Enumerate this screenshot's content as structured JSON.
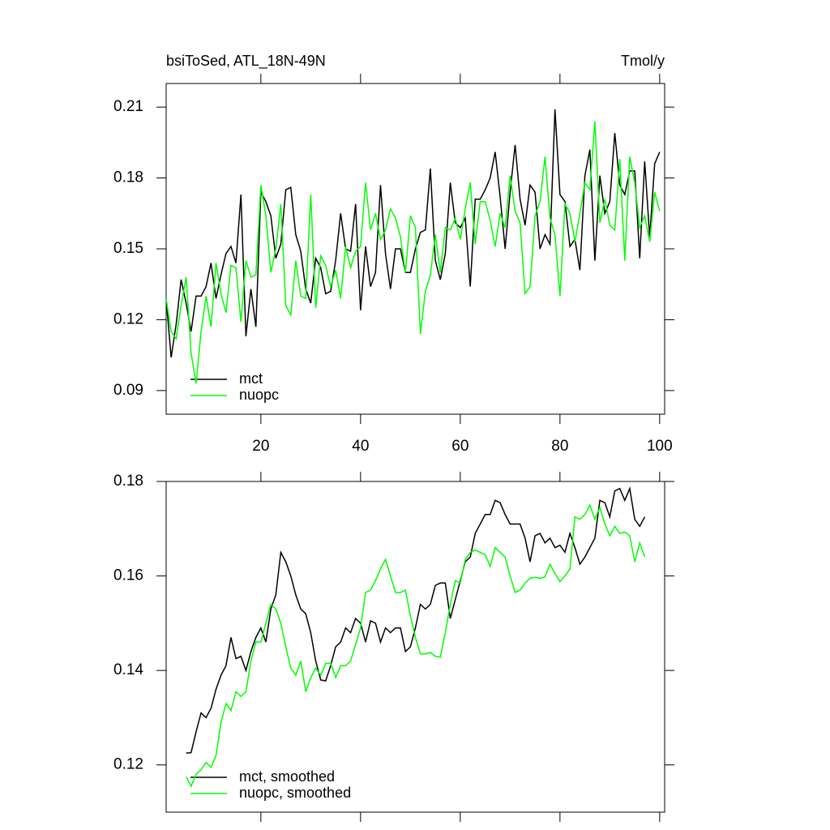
{
  "chart_data": [
    {
      "type": "line",
      "title": "bsiToSed, ATL_18N-49N",
      "units": "Tmol/y",
      "legend": "lower left",
      "x": [
        1,
        2,
        3,
        4,
        5,
        6,
        7,
        8,
        9,
        10,
        11,
        12,
        13,
        14,
        15,
        16,
        17,
        18,
        19,
        20,
        21,
        22,
        23,
        24,
        25,
        26,
        27,
        28,
        29,
        30,
        31,
        32,
        33,
        34,
        35,
        36,
        37,
        38,
        39,
        40,
        41,
        42,
        43,
        44,
        45,
        46,
        47,
        48,
        49,
        50,
        51,
        52,
        53,
        54,
        55,
        56,
        57,
        58,
        59,
        60,
        61,
        62,
        63,
        64,
        65,
        66,
        67,
        68,
        69,
        70,
        71,
        72,
        73,
        74,
        75,
        76,
        77,
        78,
        79,
        80,
        81,
        82,
        83,
        84,
        85,
        86,
        87,
        88,
        89,
        90,
        91,
        92,
        93,
        94,
        95,
        96,
        97,
        98,
        99,
        100
      ],
      "xlim": [
        1,
        101
      ],
      "xticks": [
        20,
        40,
        60,
        80,
        100
      ],
      "ylim": [
        0.08,
        0.22
      ],
      "yticks": [
        0.09,
        0.12,
        0.15,
        0.18,
        0.21
      ],
      "series": [
        {
          "name": "mct",
          "color": "#000000",
          "values": [
            0.129,
            0.104,
            0.118,
            0.137,
            0.127,
            0.115,
            0.13,
            0.13,
            0.134,
            0.144,
            0.129,
            0.139,
            0.148,
            0.151,
            0.144,
            0.173,
            0.113,
            0.133,
            0.117,
            0.174,
            0.17,
            0.164,
            0.146,
            0.152,
            0.175,
            0.176,
            0.156,
            0.149,
            0.133,
            0.127,
            0.146,
            0.142,
            0.131,
            0.132,
            0.145,
            0.165,
            0.15,
            0.149,
            0.169,
            0.124,
            0.151,
            0.134,
            0.14,
            0.177,
            0.148,
            0.133,
            0.15,
            0.15,
            0.14,
            0.14,
            0.15,
            0.157,
            0.158,
            0.184,
            0.145,
            0.137,
            0.148,
            0.178,
            0.161,
            0.159,
            0.163,
            0.134,
            0.171,
            0.171,
            0.175,
            0.18,
            0.191,
            0.172,
            0.15,
            0.174,
            0.194,
            0.171,
            0.16,
            0.177,
            0.174,
            0.15,
            0.156,
            0.152,
            0.209,
            0.173,
            0.17,
            0.151,
            0.154,
            0.141,
            0.181,
            0.192,
            0.145,
            0.181,
            0.165,
            0.17,
            0.199,
            0.177,
            0.173,
            0.183,
            0.183,
            0.146,
            0.187,
            0.155,
            0.186,
            0.191
          ]
        },
        {
          "name": "nuopc",
          "color": "#00ff00",
          "values": [
            0.129,
            0.115,
            0.112,
            0.126,
            0.138,
            0.106,
            0.093,
            0.115,
            0.13,
            0.117,
            0.144,
            0.131,
            0.123,
            0.143,
            0.142,
            0.119,
            0.145,
            0.138,
            0.139,
            0.177,
            0.164,
            0.14,
            0.15,
            0.169,
            0.126,
            0.122,
            0.145,
            0.13,
            0.129,
            0.173,
            0.125,
            0.147,
            0.143,
            0.134,
            0.141,
            0.129,
            0.151,
            0.142,
            0.149,
            0.151,
            0.178,
            0.158,
            0.165,
            0.154,
            0.158,
            0.167,
            0.163,
            0.155,
            0.14,
            0.164,
            0.159,
            0.114,
            0.132,
            0.139,
            0.156,
            0.14,
            0.159,
            0.158,
            0.163,
            0.154,
            0.167,
            0.178,
            0.152,
            0.17,
            0.17,
            0.162,
            0.151,
            0.165,
            0.159,
            0.181,
            0.166,
            0.161,
            0.131,
            0.134,
            0.164,
            0.17,
            0.189,
            0.163,
            0.156,
            0.13,
            0.169,
            0.165,
            0.153,
            0.165,
            0.178,
            0.175,
            0.204,
            0.161,
            0.171,
            0.16,
            0.158,
            0.188,
            0.145,
            0.189,
            0.178,
            0.159,
            0.164,
            0.153,
            0.174,
            0.166
          ]
        }
      ]
    },
    {
      "type": "line",
      "legend": "lower left",
      "x": [
        5,
        6,
        7,
        8,
        9,
        10,
        11,
        12,
        13,
        14,
        15,
        16,
        17,
        18,
        19,
        20,
        21,
        22,
        23,
        24,
        25,
        26,
        27,
        28,
        29,
        30,
        31,
        32,
        33,
        34,
        35,
        36,
        37,
        38,
        39,
        40,
        41,
        42,
        43,
        44,
        45,
        46,
        47,
        48,
        49,
        50,
        51,
        52,
        53,
        54,
        55,
        56,
        57,
        58,
        59,
        60,
        61,
        62,
        63,
        64,
        65,
        66,
        67,
        68,
        69,
        70,
        71,
        72,
        73,
        74,
        75,
        76,
        77,
        78,
        79,
        80,
        81,
        82,
        83,
        84,
        85,
        86,
        87,
        88,
        89,
        90,
        91,
        92,
        93,
        94,
        95,
        96,
        97
      ],
      "xlim": [
        1,
        101
      ],
      "ylim": [
        0.11,
        0.18
      ],
      "yticks": [
        0.12,
        0.14,
        0.16,
        0.18
      ],
      "series": [
        {
          "name": "mct, smoothed",
          "color": "#000000",
          "values": [
            0.1225,
            0.1226,
            0.127,
            0.131,
            0.13,
            0.132,
            0.136,
            0.139,
            0.141,
            0.147,
            0.1425,
            0.143,
            0.14,
            0.144,
            0.147,
            0.149,
            0.146,
            0.153,
            0.156,
            0.165,
            0.163,
            0.16,
            0.156,
            0.153,
            0.152,
            0.148,
            0.142,
            0.138,
            0.1378,
            0.141,
            0.145,
            0.146,
            0.149,
            0.148,
            0.151,
            0.15,
            0.146,
            0.1505,
            0.15,
            0.146,
            0.149,
            0.148,
            0.149,
            0.149,
            0.144,
            0.145,
            0.149,
            0.154,
            0.153,
            0.154,
            0.158,
            0.1585,
            0.1585,
            0.151,
            0.155,
            0.159,
            0.163,
            0.164,
            0.169,
            0.171,
            0.173,
            0.173,
            0.176,
            0.1755,
            0.173,
            0.171,
            0.171,
            0.171,
            0.168,
            0.163,
            0.1685,
            0.169,
            0.167,
            0.168,
            0.166,
            0.1665,
            0.165,
            0.169,
            0.166,
            0.1625,
            0.164,
            0.166,
            0.168,
            0.176,
            0.1755,
            0.1725,
            0.178,
            0.1785,
            0.176,
            0.1785,
            0.172,
            0.1705,
            0.1725
          ]
        },
        {
          "name": "nuopc, smoothed",
          "color": "#00ff00",
          "values": [
            0.1175,
            0.1155,
            0.118,
            0.119,
            0.1205,
            0.1195,
            0.122,
            0.129,
            0.133,
            0.1315,
            0.1355,
            0.1345,
            0.1355,
            0.142,
            0.146,
            0.146,
            0.15,
            0.154,
            0.153,
            0.15,
            0.145,
            0.1405,
            0.139,
            0.142,
            0.1355,
            0.1385,
            0.1405,
            0.139,
            0.1415,
            0.1415,
            0.1385,
            0.141,
            0.141,
            0.142,
            0.1455,
            0.149,
            0.1565,
            0.157,
            0.159,
            0.1615,
            0.1635,
            0.16,
            0.1565,
            0.1565,
            0.157,
            0.1515,
            0.147,
            0.1435,
            0.1435,
            0.1438,
            0.143,
            0.1428,
            0.148,
            0.154,
            0.159,
            0.1585,
            0.1635,
            0.165,
            0.1655,
            0.165,
            0.1645,
            0.162,
            0.166,
            0.165,
            0.164,
            0.16,
            0.1565,
            0.157,
            0.1585,
            0.1595,
            0.1597,
            0.1595,
            0.1598,
            0.1625,
            0.1605,
            0.1588,
            0.16,
            0.1615,
            0.1725,
            0.172,
            0.173,
            0.175,
            0.172,
            0.1745,
            0.171,
            0.1685,
            0.1705,
            0.169,
            0.1693,
            0.1685,
            0.163,
            0.167,
            0.164
          ]
        }
      ]
    }
  ]
}
